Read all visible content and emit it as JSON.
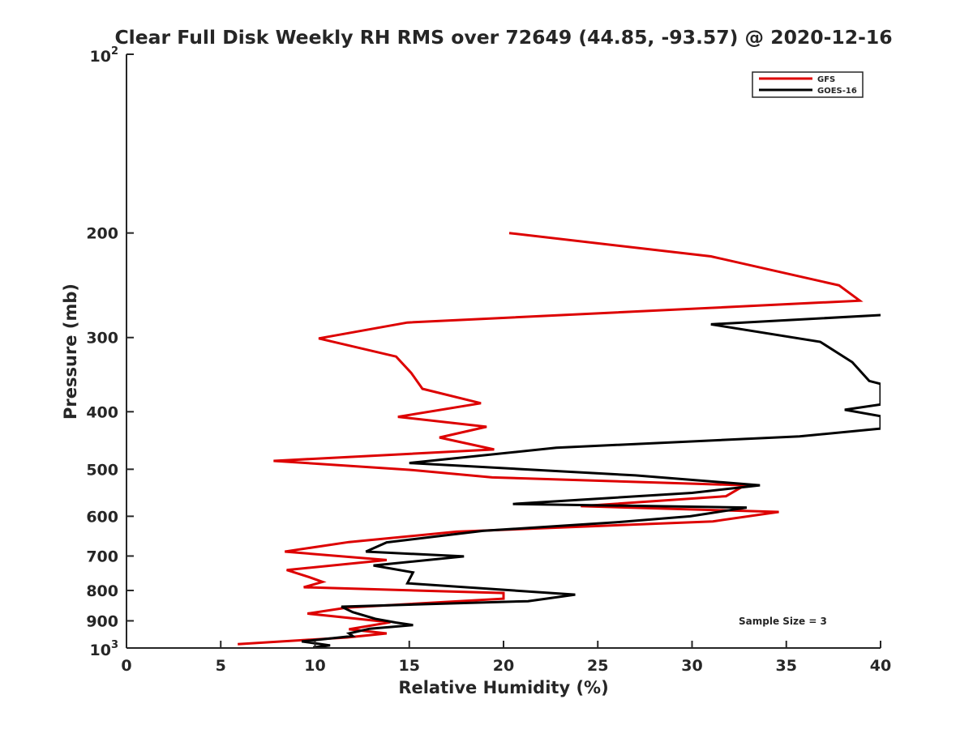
{
  "chart_data": {
    "type": "line",
    "title": "Clear Full Disk Weekly RH RMS over 72649 (44.85, -93.57) @ 2020-12-16",
    "xlabel": "Relative Humidity (%)",
    "ylabel": "Pressure (mb)",
    "xlim": [
      0,
      40
    ],
    "ylim": [
      100,
      1000
    ],
    "y_scale": "log",
    "y_reversed": true,
    "grid": false,
    "legend_position": "top-right",
    "x_ticks": [
      "0",
      "5",
      "10",
      "15",
      "20",
      "25",
      "30",
      "35",
      "40"
    ],
    "y_ticks": [
      "200",
      "300",
      "400",
      "500",
      "600",
      "700",
      "800",
      "900"
    ],
    "y_tick_values": [
      200,
      300,
      400,
      500,
      600,
      700,
      800,
      900
    ],
    "y_decade_labels": {
      "top": {
        "base": "10",
        "exp": "2"
      },
      "bottom": {
        "base": "10",
        "exp": "3"
      }
    },
    "annotation": "Sample Size = 3",
    "series": [
      {
        "name": "GFS",
        "color": "#dd0000",
        "points": [
          [
            20.3,
            200
          ],
          [
            31.0,
            219
          ],
          [
            37.8,
            245
          ],
          [
            38.9,
            260
          ],
          [
            14.9,
            283
          ],
          [
            10.2,
            301
          ],
          [
            14.3,
            323
          ],
          [
            15.1,
            344
          ],
          [
            15.7,
            366
          ],
          [
            18.8,
            387
          ],
          [
            14.4,
            408
          ],
          [
            19.1,
            424
          ],
          [
            16.6,
            442
          ],
          [
            19.5,
            463
          ],
          [
            7.8,
            484
          ],
          [
            15.0,
            501
          ],
          [
            19.4,
            516
          ],
          [
            32.8,
            532
          ],
          [
            31.8,
            555
          ],
          [
            24.1,
            577
          ],
          [
            34.6,
            590
          ],
          [
            31.1,
            612
          ],
          [
            17.5,
            637
          ],
          [
            11.8,
            663
          ],
          [
            8.4,
            688
          ],
          [
            13.8,
            711
          ],
          [
            8.5,
            739
          ],
          [
            9.7,
            760
          ],
          [
            10.4,
            774
          ],
          [
            9.4,
            790
          ],
          [
            20.0,
            808
          ],
          [
            20.0,
            826
          ],
          [
            11.7,
            855
          ],
          [
            9.6,
            875
          ],
          [
            14.0,
            905
          ],
          [
            11.8,
            930
          ],
          [
            13.8,
            945
          ],
          [
            11.7,
            960
          ],
          [
            5.9,
            985
          ]
        ]
      },
      {
        "name": "GOES-16",
        "color": "#000000",
        "points": [
          [
            40.0,
            275
          ],
          [
            31.0,
            285
          ],
          [
            36.8,
            305
          ],
          [
            38.5,
            330
          ],
          [
            39.4,
            355
          ],
          [
            40.0,
            359
          ],
          [
            40.0,
            389
          ],
          [
            38.1,
            397
          ],
          [
            40.0,
            407
          ],
          [
            40.0,
            427
          ],
          [
            35.7,
            440
          ],
          [
            22.8,
            460
          ],
          [
            15.0,
            488
          ],
          [
            27.0,
            512
          ],
          [
            33.6,
            532
          ],
          [
            30.0,
            548
          ],
          [
            20.5,
            572
          ],
          [
            32.9,
            580
          ],
          [
            29.9,
            600
          ],
          [
            26.0,
            614
          ],
          [
            18.9,
            635
          ],
          [
            13.8,
            664
          ],
          [
            12.7,
            688
          ],
          [
            17.9,
            701
          ],
          [
            13.1,
            726
          ],
          [
            15.2,
            746
          ],
          [
            14.9,
            778
          ],
          [
            23.8,
            813
          ],
          [
            21.3,
            834
          ],
          [
            11.4,
            852
          ],
          [
            12.0,
            870
          ],
          [
            13.2,
            893
          ],
          [
            14.3,
            906
          ],
          [
            15.2,
            915
          ],
          [
            12.9,
            928
          ],
          [
            11.8,
            945
          ],
          [
            12.0,
            955
          ],
          [
            9.3,
            975
          ],
          [
            10.8,
            990
          ],
          [
            9.9,
            998
          ]
        ]
      }
    ]
  }
}
